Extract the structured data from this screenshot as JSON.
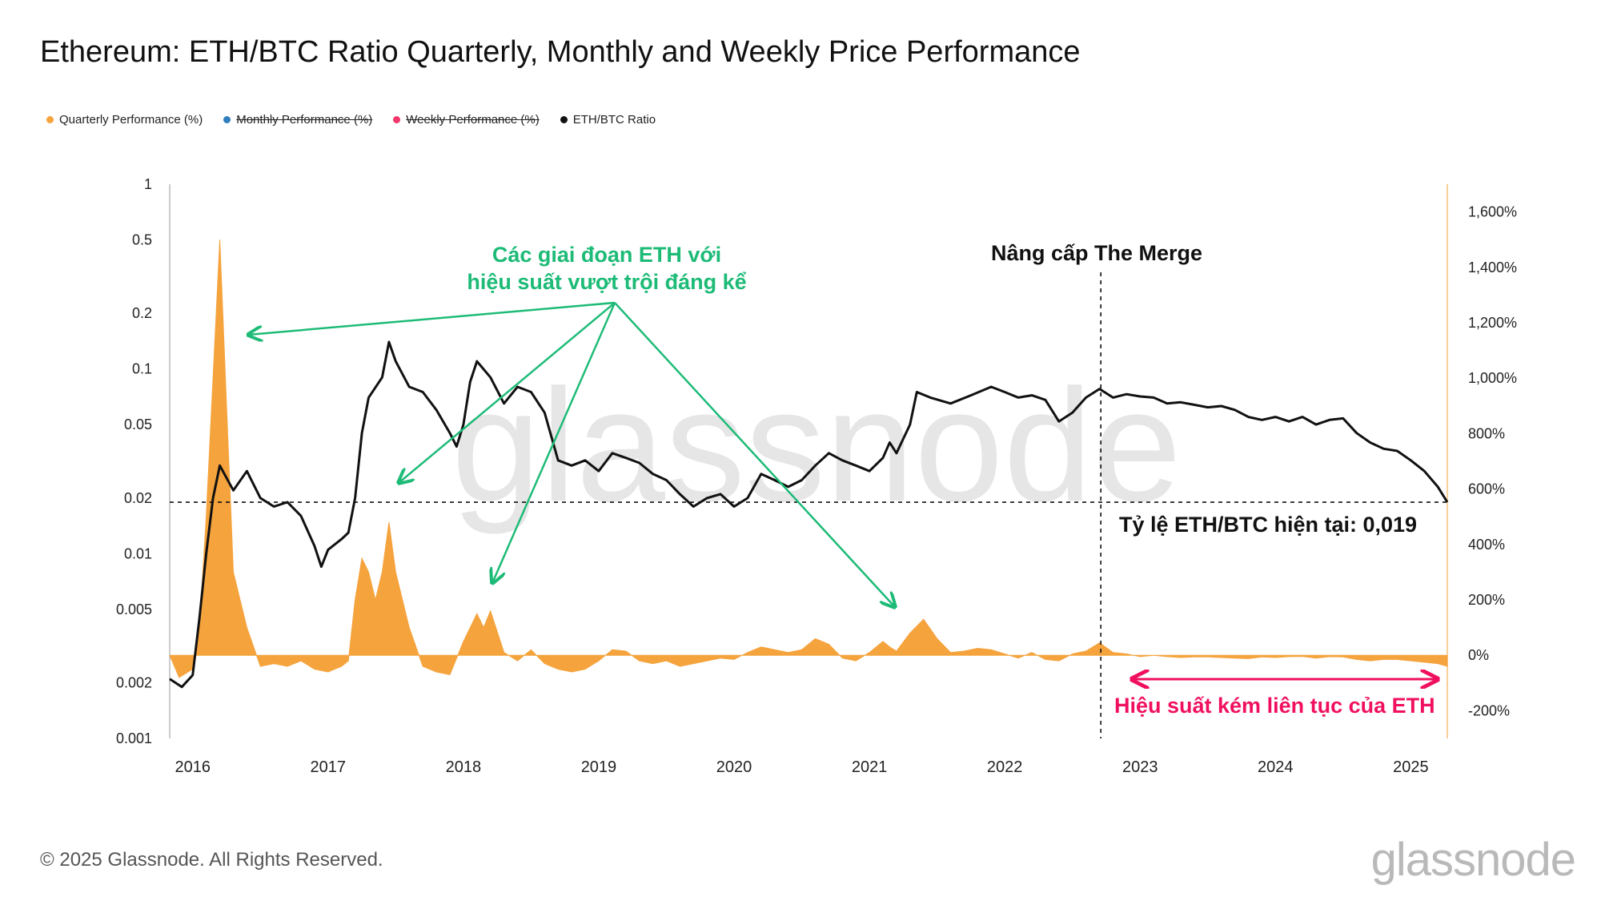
{
  "title": "Ethereum: ETH/BTC Ratio Quarterly, Monthly and Weekly Price Performance",
  "legend": [
    {
      "label": "Quarterly Performance (%)",
      "color": "#f5a33d",
      "active": true
    },
    {
      "label": "Monthly Performance (%)",
      "color": "#2f7fbf",
      "active": false
    },
    {
      "label": "Weekly Performance (%)",
      "color": "#f0366a",
      "active": false
    },
    {
      "label": "ETH/BTC Ratio",
      "color": "#111111",
      "active": true
    }
  ],
  "footer": "© 2025 Glassnode. All Rights Reserved.",
  "brand": "glassnode",
  "watermark": "glassnode",
  "annotations": {
    "outperform_line1": "Các giai đoạn ETH với",
    "outperform_line2": "hiệu suất vượt trội đáng kể",
    "merge": "Nâng cấp The Merge",
    "current": "Tỷ lệ ETH/BTC hiện tại: 0,019",
    "under": "Hiệu suất kém liên tục của  ETH"
  },
  "chart_data": {
    "type": "line",
    "x_ticks": [
      "2016",
      "2017",
      "2018",
      "2019",
      "2020",
      "2021",
      "2022",
      "2023",
      "2024",
      "2025"
    ],
    "y_left": {
      "scale": "log",
      "ticks": [
        "1",
        "0.5",
        "0.2",
        "0.1",
        "0.05",
        "0.02",
        "0.01",
        "0.005",
        "0.002",
        "0.001"
      ],
      "range": [
        0.001,
        1
      ]
    },
    "y_right": {
      "ticks": [
        "1,600%",
        "1,400%",
        "1,200%",
        "1,000%",
        "800%",
        "600%",
        "400%",
        "200%",
        "0%",
        "-200%"
      ],
      "range": [
        -300,
        1700
      ]
    },
    "current_ratio": 0.019,
    "merge_date": 2022.71,
    "series": [
      {
        "name": "ETH/BTC Ratio",
        "axis": "left",
        "color": "#111111",
        "points": [
          [
            2015.83,
            0.0021
          ],
          [
            2015.92,
            0.0019
          ],
          [
            2016.0,
            0.0022
          ],
          [
            2016.05,
            0.0045
          ],
          [
            2016.1,
            0.01
          ],
          [
            2016.15,
            0.02
          ],
          [
            2016.2,
            0.03
          ],
          [
            2016.3,
            0.022
          ],
          [
            2016.4,
            0.028
          ],
          [
            2016.5,
            0.02
          ],
          [
            2016.6,
            0.018
          ],
          [
            2016.7,
            0.019
          ],
          [
            2016.8,
            0.016
          ],
          [
            2016.9,
            0.011
          ],
          [
            2016.95,
            0.0085
          ],
          [
            2017.0,
            0.0105
          ],
          [
            2017.1,
            0.012
          ],
          [
            2017.15,
            0.013
          ],
          [
            2017.2,
            0.02
          ],
          [
            2017.25,
            0.045
          ],
          [
            2017.3,
            0.07
          ],
          [
            2017.4,
            0.09
          ],
          [
            2017.45,
            0.14
          ],
          [
            2017.5,
            0.11
          ],
          [
            2017.6,
            0.08
          ],
          [
            2017.7,
            0.075
          ],
          [
            2017.8,
            0.06
          ],
          [
            2017.9,
            0.045
          ],
          [
            2017.95,
            0.038
          ],
          [
            2018.0,
            0.05
          ],
          [
            2018.05,
            0.085
          ],
          [
            2018.1,
            0.11
          ],
          [
            2018.2,
            0.09
          ],
          [
            2018.3,
            0.065
          ],
          [
            2018.4,
            0.08
          ],
          [
            2018.5,
            0.075
          ],
          [
            2018.6,
            0.058
          ],
          [
            2018.7,
            0.032
          ],
          [
            2018.8,
            0.03
          ],
          [
            2018.9,
            0.032
          ],
          [
            2019.0,
            0.028
          ],
          [
            2019.1,
            0.035
          ],
          [
            2019.2,
            0.033
          ],
          [
            2019.3,
            0.031
          ],
          [
            2019.4,
            0.027
          ],
          [
            2019.5,
            0.025
          ],
          [
            2019.6,
            0.021
          ],
          [
            2019.7,
            0.018
          ],
          [
            2019.8,
            0.02
          ],
          [
            2019.9,
            0.021
          ],
          [
            2020.0,
            0.018
          ],
          [
            2020.1,
            0.02
          ],
          [
            2020.2,
            0.027
          ],
          [
            2020.3,
            0.025
          ],
          [
            2020.4,
            0.023
          ],
          [
            2020.5,
            0.025
          ],
          [
            2020.6,
            0.03
          ],
          [
            2020.7,
            0.035
          ],
          [
            2020.8,
            0.032
          ],
          [
            2020.9,
            0.03
          ],
          [
            2021.0,
            0.028
          ],
          [
            2021.1,
            0.033
          ],
          [
            2021.15,
            0.04
          ],
          [
            2021.2,
            0.035
          ],
          [
            2021.3,
            0.05
          ],
          [
            2021.35,
            0.075
          ],
          [
            2021.45,
            0.07
          ],
          [
            2021.6,
            0.065
          ],
          [
            2021.75,
            0.072
          ],
          [
            2021.9,
            0.08
          ],
          [
            2022.0,
            0.075
          ],
          [
            2022.1,
            0.07
          ],
          [
            2022.2,
            0.072
          ],
          [
            2022.3,
            0.068
          ],
          [
            2022.4,
            0.052
          ],
          [
            2022.5,
            0.058
          ],
          [
            2022.6,
            0.07
          ],
          [
            2022.7,
            0.078
          ],
          [
            2022.8,
            0.07
          ],
          [
            2022.9,
            0.073
          ],
          [
            2023.0,
            0.071
          ],
          [
            2023.1,
            0.07
          ],
          [
            2023.2,
            0.065
          ],
          [
            2023.3,
            0.066
          ],
          [
            2023.4,
            0.064
          ],
          [
            2023.5,
            0.062
          ],
          [
            2023.6,
            0.063
          ],
          [
            2023.7,
            0.06
          ],
          [
            2023.8,
            0.055
          ],
          [
            2023.9,
            0.053
          ],
          [
            2024.0,
            0.055
          ],
          [
            2024.1,
            0.052
          ],
          [
            2024.2,
            0.055
          ],
          [
            2024.3,
            0.05
          ],
          [
            2024.4,
            0.053
          ],
          [
            2024.5,
            0.054
          ],
          [
            2024.6,
            0.045
          ],
          [
            2024.7,
            0.04
          ],
          [
            2024.8,
            0.037
          ],
          [
            2024.9,
            0.036
          ],
          [
            2025.0,
            0.032
          ],
          [
            2025.1,
            0.028
          ],
          [
            2025.2,
            0.023
          ],
          [
            2025.27,
            0.019
          ]
        ]
      },
      {
        "name": "Quarterly Performance (%)",
        "axis": "right",
        "color": "#f5a33d",
        "points": [
          [
            2015.83,
            0
          ],
          [
            2015.9,
            -80
          ],
          [
            2016.0,
            -50
          ],
          [
            2016.05,
            100
          ],
          [
            2016.1,
            500
          ],
          [
            2016.15,
            1000
          ],
          [
            2016.2,
            1500
          ],
          [
            2016.25,
            900
          ],
          [
            2016.3,
            300
          ],
          [
            2016.4,
            100
          ],
          [
            2016.5,
            -40
          ],
          [
            2016.6,
            -30
          ],
          [
            2016.7,
            -40
          ],
          [
            2016.8,
            -20
          ],
          [
            2016.9,
            -50
          ],
          [
            2017.0,
            -60
          ],
          [
            2017.1,
            -40
          ],
          [
            2017.15,
            -20
          ],
          [
            2017.2,
            200
          ],
          [
            2017.25,
            350
          ],
          [
            2017.3,
            300
          ],
          [
            2017.35,
            200
          ],
          [
            2017.4,
            300
          ],
          [
            2017.45,
            480
          ],
          [
            2017.5,
            300
          ],
          [
            2017.6,
            100
          ],
          [
            2017.7,
            -40
          ],
          [
            2017.8,
            -60
          ],
          [
            2017.9,
            -70
          ],
          [
            2018.0,
            50
          ],
          [
            2018.1,
            150
          ],
          [
            2018.15,
            100
          ],
          [
            2018.2,
            160
          ],
          [
            2018.3,
            10
          ],
          [
            2018.4,
            -20
          ],
          [
            2018.5,
            20
          ],
          [
            2018.6,
            -30
          ],
          [
            2018.7,
            -50
          ],
          [
            2018.8,
            -60
          ],
          [
            2018.9,
            -50
          ],
          [
            2019.0,
            -20
          ],
          [
            2019.1,
            20
          ],
          [
            2019.2,
            15
          ],
          [
            2019.3,
            -20
          ],
          [
            2019.4,
            -30
          ],
          [
            2019.5,
            -20
          ],
          [
            2019.6,
            -40
          ],
          [
            2019.7,
            -30
          ],
          [
            2019.8,
            -20
          ],
          [
            2019.9,
            -10
          ],
          [
            2020.0,
            -15
          ],
          [
            2020.1,
            10
          ],
          [
            2020.2,
            30
          ],
          [
            2020.3,
            20
          ],
          [
            2020.4,
            10
          ],
          [
            2020.5,
            20
          ],
          [
            2020.6,
            60
          ],
          [
            2020.7,
            40
          ],
          [
            2020.8,
            -10
          ],
          [
            2020.9,
            -20
          ],
          [
            2021.0,
            10
          ],
          [
            2021.1,
            50
          ],
          [
            2021.15,
            30
          ],
          [
            2021.2,
            15
          ],
          [
            2021.3,
            80
          ],
          [
            2021.4,
            130
          ],
          [
            2021.5,
            60
          ],
          [
            2021.6,
            10
          ],
          [
            2021.7,
            15
          ],
          [
            2021.8,
            25
          ],
          [
            2021.9,
            20
          ],
          [
            2022.0,
            5
          ],
          [
            2022.1,
            -10
          ],
          [
            2022.2,
            10
          ],
          [
            2022.3,
            -15
          ],
          [
            2022.4,
            -20
          ],
          [
            2022.5,
            5
          ],
          [
            2022.6,
            15
          ],
          [
            2022.7,
            45
          ],
          [
            2022.8,
            10
          ],
          [
            2022.9,
            5
          ],
          [
            2023.0,
            -5
          ],
          [
            2023.1,
            0
          ],
          [
            2023.2,
            -5
          ],
          [
            2023.3,
            -8
          ],
          [
            2023.4,
            -6
          ],
          [
            2023.5,
            -6
          ],
          [
            2023.6,
            -8
          ],
          [
            2023.7,
            -10
          ],
          [
            2023.8,
            -12
          ],
          [
            2023.9,
            -6
          ],
          [
            2024.0,
            -8
          ],
          [
            2024.1,
            -5
          ],
          [
            2024.2,
            -4
          ],
          [
            2024.3,
            -10
          ],
          [
            2024.4,
            -5
          ],
          [
            2024.5,
            -6
          ],
          [
            2024.6,
            -15
          ],
          [
            2024.7,
            -20
          ],
          [
            2024.8,
            -15
          ],
          [
            2024.9,
            -15
          ],
          [
            2025.0,
            -20
          ],
          [
            2025.1,
            -25
          ],
          [
            2025.2,
            -30
          ],
          [
            2025.27,
            -40
          ]
        ]
      }
    ]
  }
}
